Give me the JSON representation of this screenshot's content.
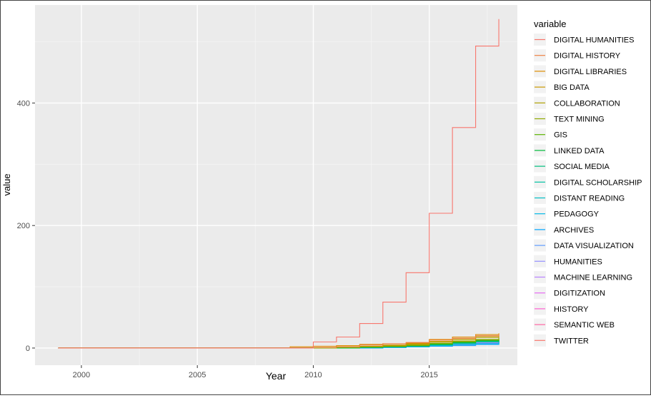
{
  "chart_data": {
    "type": "line",
    "step": true,
    "xlabel": "Year",
    "ylabel": "value",
    "xlim": [
      1998,
      2018.8
    ],
    "ylim": [
      -28,
      560
    ],
    "xticks": [
      2000,
      2005,
      2010,
      2015
    ],
    "yticks": [
      0,
      200,
      400
    ],
    "grid": true,
    "legend_title": "variable",
    "legend_position": "right",
    "x": [
      1999,
      2009,
      2010,
      2011,
      2012,
      2013,
      2014,
      2015,
      2016,
      2017,
      2018
    ],
    "series": [
      {
        "name": "DIGITAL HUMANITIES",
        "color": "#F8766D",
        "values": [
          0,
          0,
          10,
          18,
          40,
          75,
          123,
          220,
          360,
          493,
          537
        ]
      },
      {
        "name": "DIGITAL HISTORY",
        "color": "#EE8043",
        "values": [
          0,
          0,
          1,
          2,
          5,
          7,
          9,
          13,
          16,
          20,
          22
        ]
      },
      {
        "name": "DIGITAL LIBRARIES",
        "color": "#DE8C00",
        "values": [
          0,
          2,
          3,
          4,
          6,
          7,
          8,
          14,
          18,
          22,
          24
        ]
      },
      {
        "name": "BIG DATA",
        "color": "#C99800",
        "values": [
          0,
          0,
          1,
          2,
          3,
          5,
          7,
          11,
          15,
          19,
          21
        ]
      },
      {
        "name": "COLLABORATION",
        "color": "#B0A100",
        "values": [
          0,
          0,
          1,
          2,
          3,
          4,
          6,
          10,
          13,
          17,
          19
        ]
      },
      {
        "name": "TEXT MINING",
        "color": "#8FAA00",
        "values": [
          0,
          0,
          0,
          1,
          2,
          3,
          5,
          8,
          11,
          14,
          17
        ]
      },
      {
        "name": "GIS",
        "color": "#5BB300",
        "values": [
          0,
          0,
          0,
          1,
          2,
          3,
          4,
          7,
          10,
          13,
          16
        ]
      },
      {
        "name": "LINKED DATA",
        "color": "#00BA38",
        "values": [
          0,
          0,
          0,
          0,
          1,
          2,
          4,
          6,
          9,
          12,
          15
        ]
      },
      {
        "name": "SOCIAL MEDIA",
        "color": "#00BF7D",
        "values": [
          0,
          0,
          0,
          0,
          1,
          2,
          3,
          6,
          8,
          11,
          14
        ]
      },
      {
        "name": "DIGITAL SCHOLARSHIP",
        "color": "#00C1A3",
        "values": [
          0,
          0,
          0,
          0,
          1,
          2,
          3,
          5,
          8,
          10,
          13
        ]
      },
      {
        "name": "DISTANT READING",
        "color": "#00BFC4",
        "values": [
          0,
          0,
          0,
          0,
          1,
          2,
          3,
          5,
          7,
          10,
          12
        ]
      },
      {
        "name": "PEDAGOGY",
        "color": "#00B8E7",
        "values": [
          0,
          0,
          0,
          0,
          1,
          1,
          2,
          4,
          5,
          7,
          10
        ]
      },
      {
        "name": "ARCHIVES",
        "color": "#00A5FF",
        "values": [
          0,
          0,
          0,
          0,
          0,
          1,
          2,
          3,
          5,
          6,
          9
        ]
      },
      {
        "name": "DATA VISUALIZATION",
        "color": "#619CFF",
        "values": [
          0,
          0,
          0,
          0,
          0,
          1,
          2,
          3,
          4,
          6,
          8
        ]
      },
      {
        "name": "HUMANITIES",
        "color": "#9590FF",
        "values": [
          0,
          0,
          0,
          0,
          0,
          1,
          2,
          4,
          6,
          8,
          11
        ]
      },
      {
        "name": "MACHINE LEARNING",
        "color": "#B983FF",
        "values": [
          0,
          0,
          0,
          0,
          0,
          1,
          2,
          4,
          6,
          9,
          12
        ]
      },
      {
        "name": "DIGITIZATION",
        "color": "#E76BF3",
        "values": [
          0,
          0,
          0,
          0,
          0,
          1,
          3,
          5,
          7,
          9,
          12
        ]
      },
      {
        "name": "HISTORY",
        "color": "#FD61D1",
        "values": [
          0,
          0,
          0,
          0,
          1,
          2,
          4,
          6,
          8,
          10,
          13
        ]
      },
      {
        "name": "SEMANTIC WEB",
        "color": "#FF67A4",
        "values": [
          0,
          0,
          0,
          0,
          1,
          3,
          5,
          7,
          9,
          11,
          14
        ]
      },
      {
        "name": "TWITTER",
        "color": "#F8766D",
        "values": [
          0,
          0,
          0,
          0,
          0,
          2,
          4,
          6,
          8,
          10,
          11
        ]
      }
    ]
  }
}
